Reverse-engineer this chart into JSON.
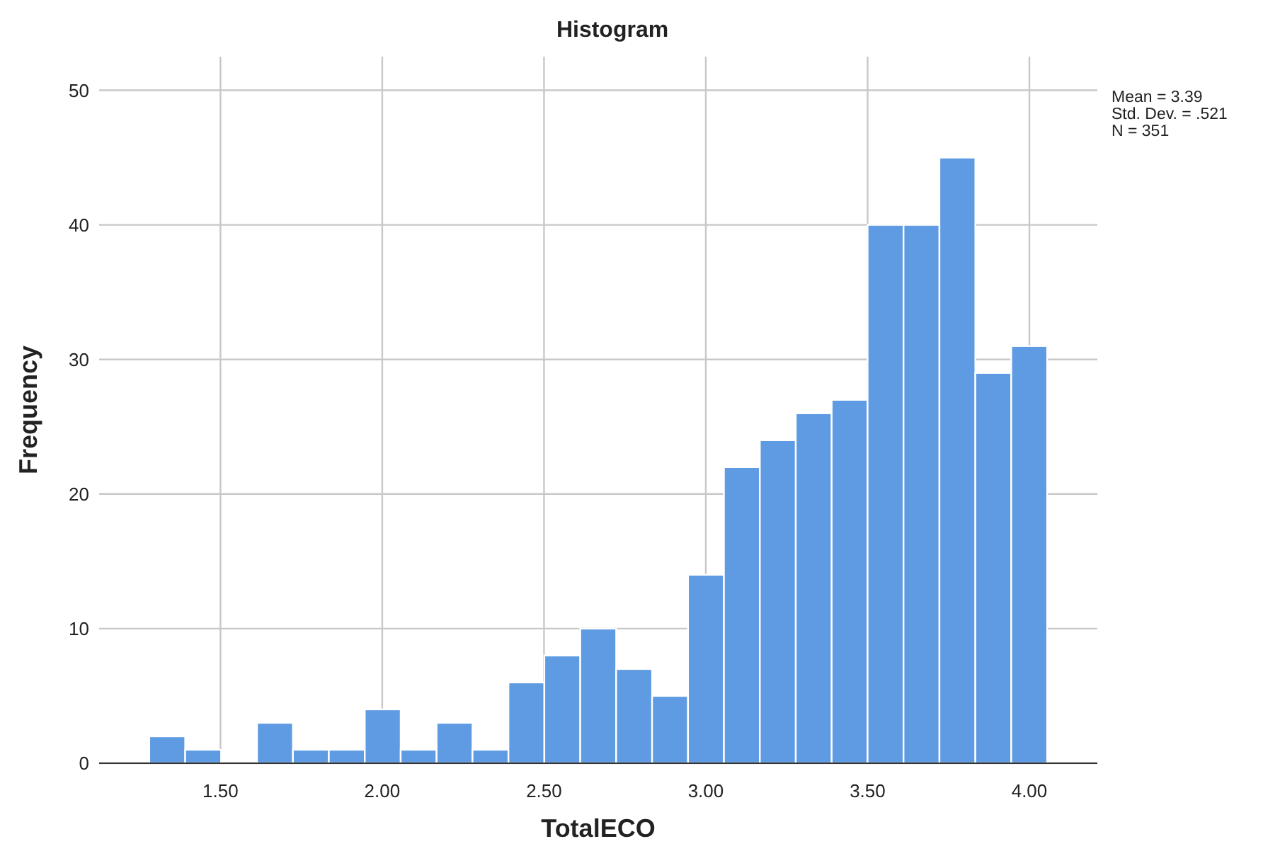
{
  "chart_data": {
    "type": "histogram",
    "title": "Histogram",
    "xlabel": "TotalECO",
    "ylabel": "Frequency",
    "bins": [
      1.28,
      1.391,
      1.502,
      1.613,
      1.724,
      1.835,
      1.946,
      2.057,
      2.168,
      2.279,
      2.39,
      2.501,
      2.612,
      2.723,
      2.834,
      2.945,
      3.056,
      3.167,
      3.278,
      3.389,
      3.5,
      3.611,
      3.722,
      3.833,
      3.944,
      4.055
    ],
    "values": [
      2,
      1,
      0,
      3,
      1,
      1,
      4,
      1,
      3,
      1,
      6,
      8,
      10,
      7,
      5,
      14,
      22,
      24,
      26,
      27,
      40,
      40,
      45,
      29,
      31
    ],
    "color": "#5e9be2",
    "xlim": [
      1.125,
      4.21
    ],
    "xticks": [
      {
        "value": 1.5,
        "label": "1.50"
      },
      {
        "value": 2,
        "label": "2.00"
      },
      {
        "value": 2.5,
        "label": "2.50"
      },
      {
        "value": 3,
        "label": "3.00"
      },
      {
        "value": 3.5,
        "label": "3.50"
      },
      {
        "value": 4,
        "label": "4.00"
      }
    ],
    "ylim": [
      0,
      52.5
    ],
    "yticks": [
      0,
      10,
      20,
      30,
      40,
      50
    ],
    "grid": true,
    "annotations": [
      "Mean = 3.39",
      "Std. Dev. = .521",
      "N = 351"
    ]
  }
}
